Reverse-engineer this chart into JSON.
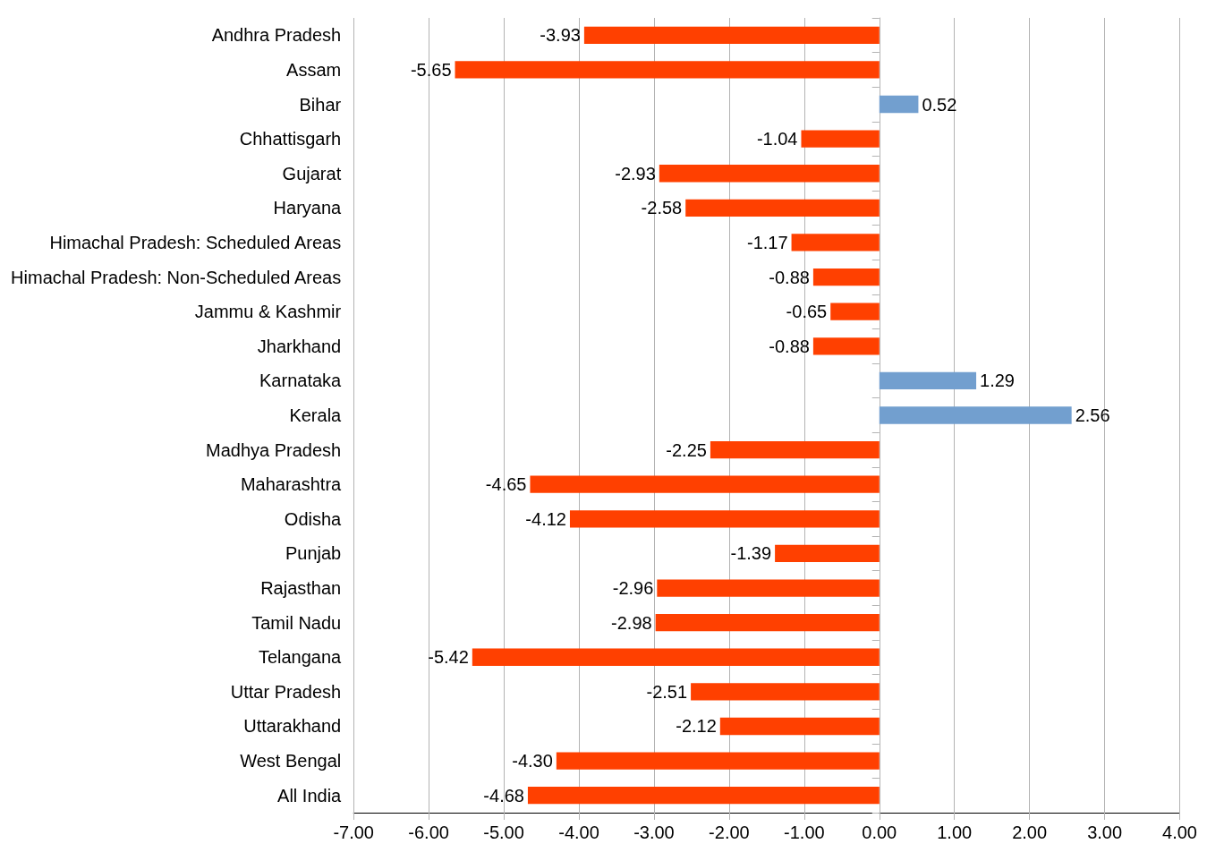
{
  "chart_data": {
    "type": "bar",
    "orientation": "horizontal",
    "categories": [
      "Andhra Pradesh",
      "Assam",
      "Bihar",
      "Chhattisgarh",
      "Gujarat",
      "Haryana",
      "Himachal Pradesh: Scheduled Areas",
      "Himachal Pradesh: Non-Scheduled Areas",
      "Jammu & Kashmir",
      "Jharkhand",
      "Karnataka",
      "Kerala",
      "Madhya Pradesh",
      "Maharashtra",
      "Odisha",
      "Punjab",
      "Rajasthan",
      "Tamil Nadu",
      "Telangana",
      "Uttar Pradesh",
      "Uttarakhand",
      "West Bengal",
      "All India"
    ],
    "values": [
      -3.93,
      -5.65,
      0.52,
      -1.04,
      -2.93,
      -2.58,
      -1.17,
      -0.88,
      -0.65,
      -0.88,
      1.29,
      2.56,
      -2.25,
      -4.65,
      -4.12,
      -1.39,
      -2.96,
      -2.98,
      -5.42,
      -2.51,
      -2.12,
      -4.3,
      -4.68
    ],
    "value_labels": [
      "-3.93",
      "-5.65",
      "0.52",
      "-1.04",
      "-2.93",
      "-2.58",
      "-1.17",
      "-0.88",
      "-0.65",
      "-0.88",
      "1.29",
      "2.56",
      "-2.25",
      "-4.65",
      "-4.12",
      "-1.39",
      "-2.96",
      "-2.98",
      "-5.42",
      "-2.51",
      "-2.12",
      "-4.30",
      "-4.68"
    ],
    "colors": [
      "#ff4000",
      "#ff4000",
      "#729fcf",
      "#ff4000",
      "#ff4000",
      "#ff4000",
      "#ff4000",
      "#ff4000",
      "#ff4000",
      "#ff4000",
      "#729fcf",
      "#729fcf",
      "#ff4000",
      "#ff4000",
      "#ff4000",
      "#ff4000",
      "#ff4000",
      "#ff4000",
      "#ff4000",
      "#ff4000",
      "#ff4000",
      "#ff4000",
      "#ff4000"
    ],
    "xlim": [
      -7,
      4
    ],
    "xticks": [
      {
        "value": -7,
        "label": "-7.00"
      },
      {
        "value": -6,
        "label": "-6.00"
      },
      {
        "value": -5,
        "label": "-5.00"
      },
      {
        "value": -4,
        "label": "-4.00"
      },
      {
        "value": -3,
        "label": "-3.00"
      },
      {
        "value": -2,
        "label": "-2.00"
      },
      {
        "value": -1,
        "label": "-1.00"
      },
      {
        "value": 0,
        "label": "0.00"
      },
      {
        "value": 1,
        "label": "1.00"
      },
      {
        "value": 2,
        "label": "2.00"
      },
      {
        "value": 3,
        "label": "3.00"
      },
      {
        "value": 4,
        "label": "4.00"
      }
    ],
    "grid": "x"
  }
}
